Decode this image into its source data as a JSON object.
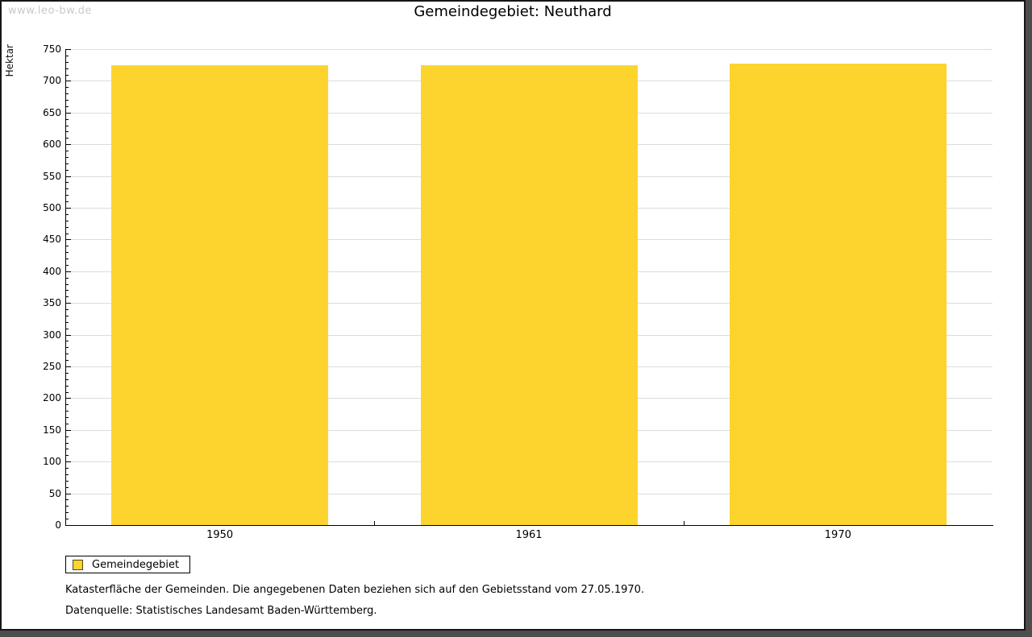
{
  "watermark": "www.leo-bw.de",
  "title": "Gemeindegebiet: Neuthard",
  "legend": {
    "label": "Gemeindegebiet"
  },
  "notes": [
    "Katasterfläche der Gemeinden. Die angegebenen Daten beziehen sich auf den Gebietsstand vom 27.05.1970.",
    "Datenquelle: Statistisches Landesamt Baden-Württemberg."
  ],
  "chart_data": {
    "type": "bar",
    "title": "Gemeindegebiet: Neuthard",
    "categories": [
      "1950",
      "1961",
      "1970"
    ],
    "series": [
      {
        "name": "Gemeindegebiet",
        "values": [
          725,
          725,
          727
        ]
      }
    ],
    "xlabel": "",
    "ylabel": "Hektar",
    "ylim": [
      0,
      750
    ],
    "y_major_step": 50,
    "y_minor_step": 10,
    "grid": true,
    "legend_position": "bottom-left"
  },
  "colors": {
    "bar": "#fcd42d",
    "grid": "#dcdcdc",
    "axis": "#000000",
    "watermark": "#c9c9c9",
    "frame_shadow": "#4d4d4d"
  }
}
